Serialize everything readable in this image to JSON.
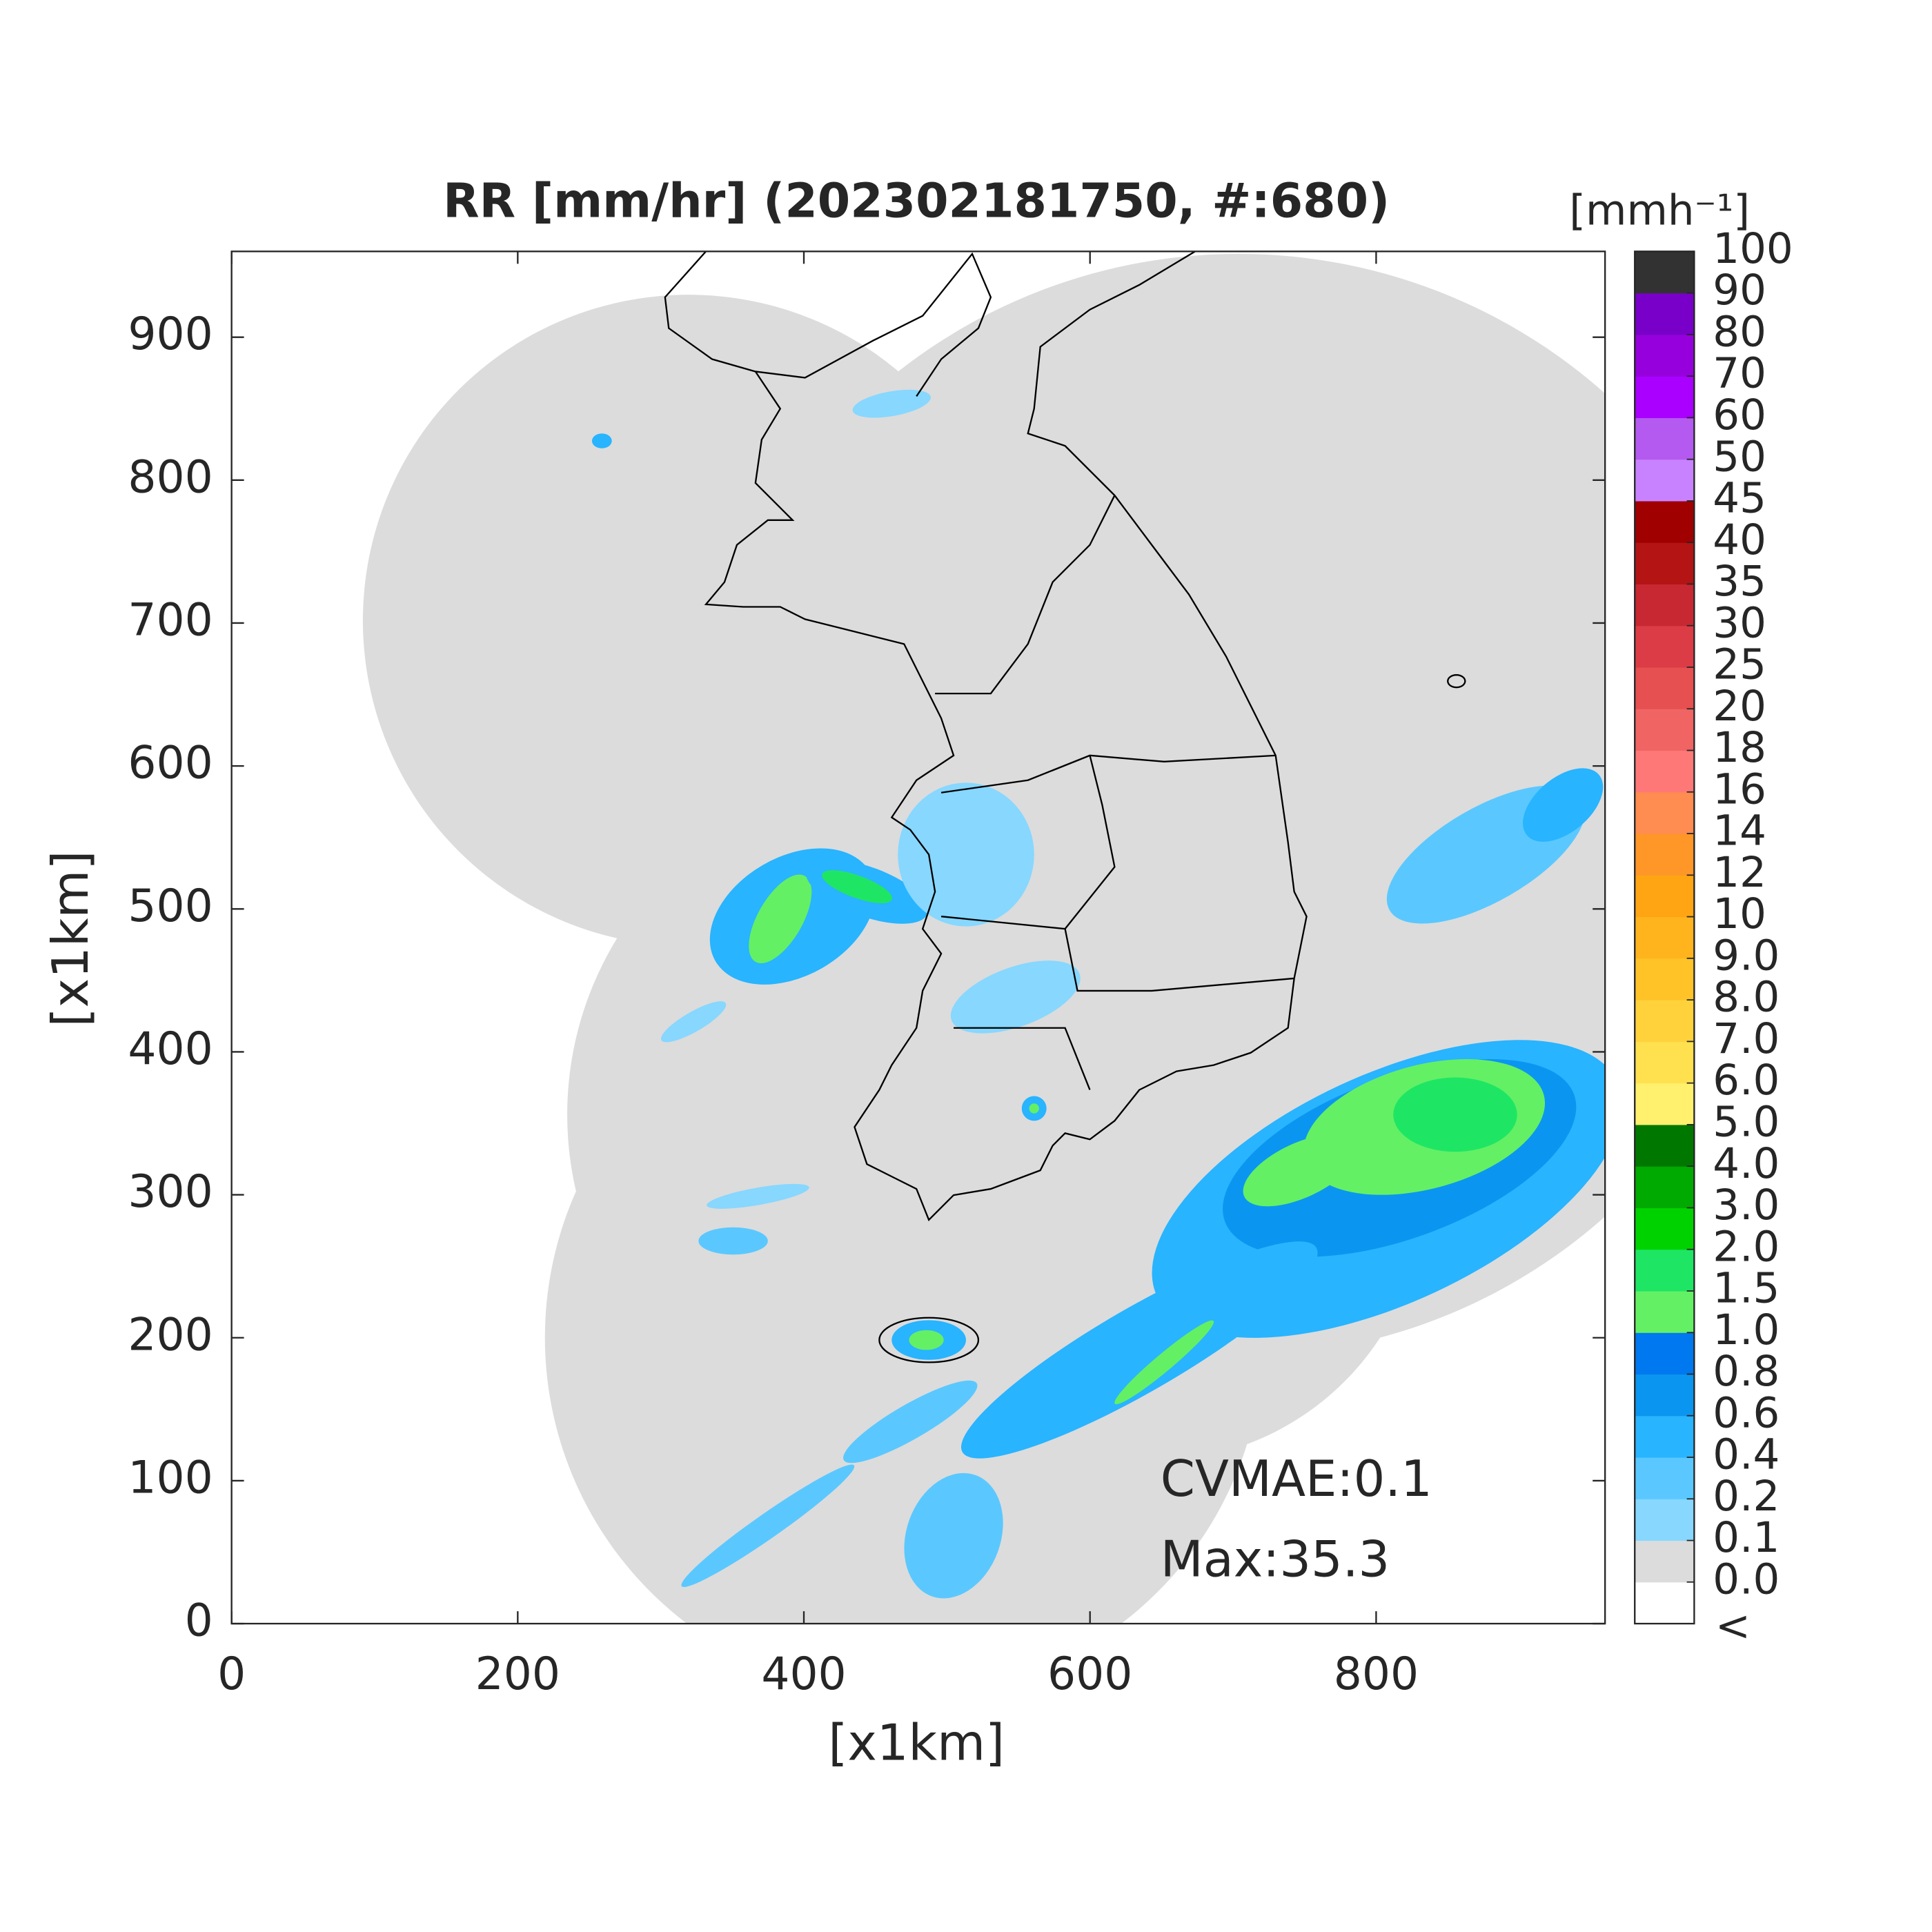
{
  "chart_data": {
    "type": "radar-map",
    "title": "RR [mm/hr] (202302181750, #:680)",
    "x_label": "[x1km]",
    "y_label": "[x1km]",
    "xlim": [
      0,
      960
    ],
    "ylim": [
      0,
      960
    ],
    "xticks": [
      0,
      200,
      400,
      600,
      800
    ],
    "yticks": [
      0,
      100,
      200,
      300,
      400,
      500,
      600,
      700,
      800,
      900
    ],
    "annotations": [
      "CVMAE:0.1",
      "Max:35.3"
    ],
    "colorbar": {
      "title": "[mmh⁻¹]",
      "below_label": "<",
      "ticks": [
        {
          "value": 0,
          "label": "0.0"
        },
        0.1,
        0.2,
        0.4,
        0.6,
        0.8,
        {
          "value": 1,
          "label": "1.0"
        },
        1.5,
        {
          "value": 2,
          "label": "2.0"
        },
        {
          "value": 3,
          "label": "3.0"
        },
        {
          "value": 4,
          "label": "4.0"
        },
        {
          "value": 5,
          "label": "5.0"
        },
        {
          "value": 6,
          "label": "6.0"
        },
        {
          "value": 7,
          "label": "7.0"
        },
        {
          "value": 8,
          "label": "8.0"
        },
        {
          "value": 9,
          "label": "9.0"
        },
        10,
        12,
        14,
        16,
        18,
        20,
        25,
        30,
        35,
        40,
        45,
        50,
        60,
        70,
        80,
        90,
        100
      ],
      "colors": [
        "#ffffff",
        "#dcdcdc",
        "#87d7ff",
        "#5ac8ff",
        "#28b4ff",
        "#0a96f0",
        "#0078f0",
        "#64f064",
        "#1ee664",
        "#00d200",
        "#00aa00",
        "#007800",
        "#fff06e",
        "#ffe150",
        "#ffd23c",
        "#ffc328",
        "#ffb41e",
        "#ffa514",
        "#ff9628",
        "#ff8c50",
        "#ff7878",
        "#f06464",
        "#e65050",
        "#dc3c46",
        "#c82832",
        "#b41414",
        "#a00000",
        "#c882ff",
        "#b45af0",
        "#aa00ff",
        "#9600dc",
        "#7800c8",
        "#323232"
      ]
    }
  }
}
